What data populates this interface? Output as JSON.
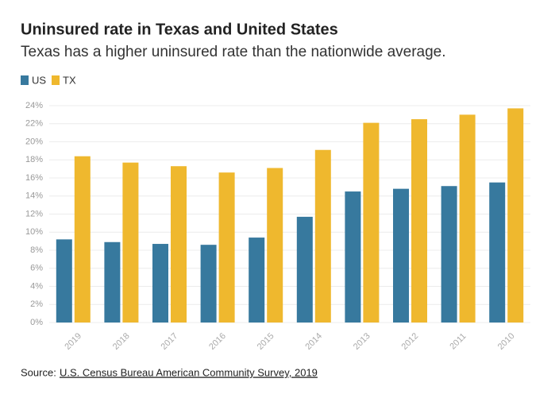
{
  "chart_data": {
    "type": "bar",
    "title": "Uninsured rate in Texas and United States",
    "subtitle": "Texas has a higher uninsured rate than the nationwide average.",
    "categories": [
      "2019",
      "2018",
      "2017",
      "2016",
      "2015",
      "2014",
      "2013",
      "2012",
      "2011",
      "2010"
    ],
    "series": [
      {
        "name": "US",
        "color": "#37799e",
        "values": [
          9.2,
          8.9,
          8.7,
          8.6,
          9.4,
          11.7,
          14.5,
          14.8,
          15.1,
          15.5
        ]
      },
      {
        "name": "TX",
        "color": "#efb82e",
        "values": [
          18.4,
          17.7,
          17.3,
          16.6,
          17.1,
          19.1,
          22.1,
          22.5,
          23.0,
          23.7
        ]
      }
    ],
    "ylim": [
      0,
      24
    ],
    "yticks": [
      {
        "value": 0,
        "label": "0%"
      },
      {
        "value": 2,
        "label": "2%"
      },
      {
        "value": 4,
        "label": "4%"
      },
      {
        "value": 6,
        "label": "6%"
      },
      {
        "value": 8,
        "label": "8%"
      },
      {
        "value": 10,
        "label": "10%"
      },
      {
        "value": 12,
        "label": "12%"
      },
      {
        "value": 14,
        "label": "14%"
      },
      {
        "value": 16,
        "label": "16%"
      },
      {
        "value": 18,
        "label": "18%"
      },
      {
        "value": 20,
        "label": "20%"
      },
      {
        "value": 22,
        "label": "22%"
      },
      {
        "value": 24,
        "label": "24%"
      }
    ],
    "grid": true,
    "legend": "top-left",
    "source_label": "Source:",
    "source": "U.S. Census Bureau American Community Survey, 2019"
  }
}
